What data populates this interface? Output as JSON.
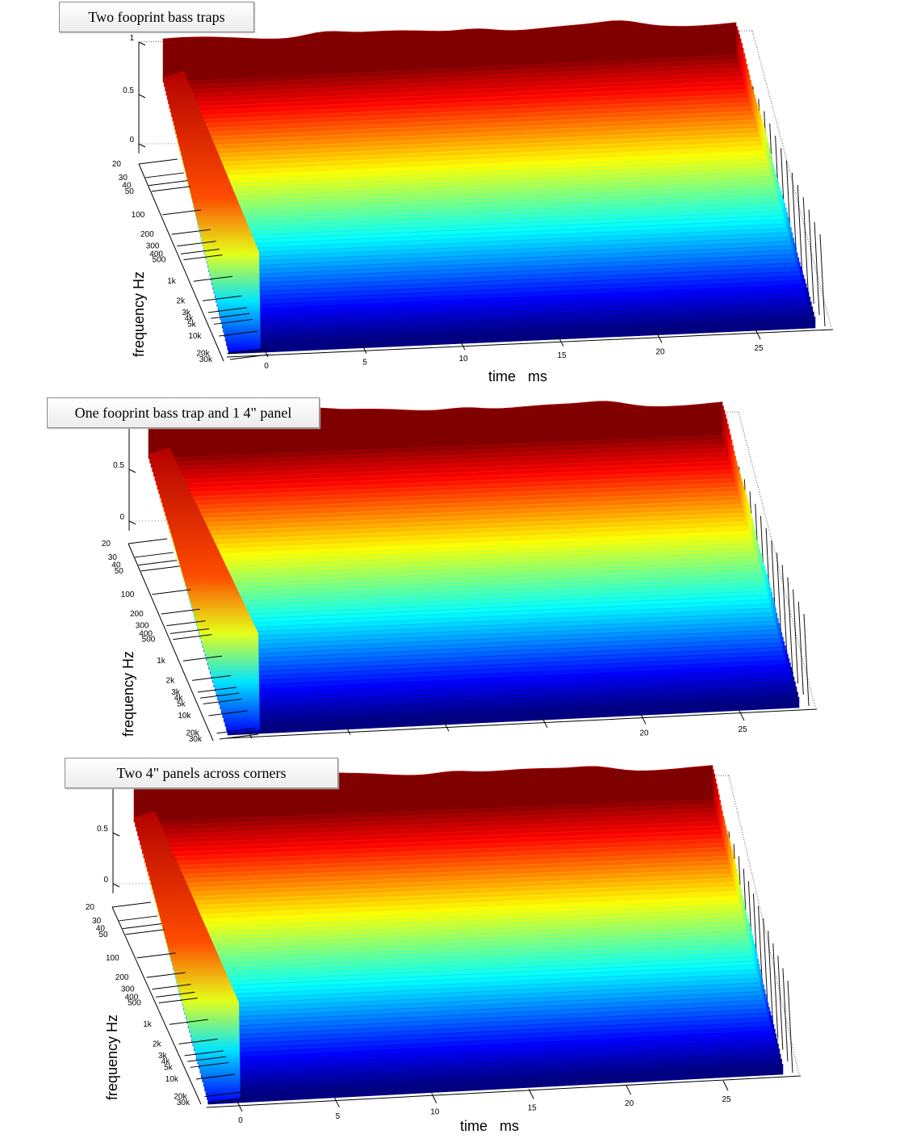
{
  "colors": {
    "colormap": "jet",
    "background": "#ffffff",
    "axis_line": "#000000",
    "box_dotted": "#555555"
  },
  "chart_data": [
    {
      "type": "waterfall",
      "title": "Two fooprint bass traps",
      "xlabel": "time   ms",
      "ylabel": "frequency   Hz",
      "z_ticks": [
        "0",
        "0.5",
        "1"
      ],
      "freq_ticks": [
        "20",
        "30",
        "40",
        "50",
        "100",
        "200",
        "300",
        "400",
        "500",
        "1k",
        "2k",
        "3k",
        "4k",
        "5k",
        "10k",
        "20k",
        "30k"
      ],
      "time_ticks": [
        "0",
        "5",
        "10",
        "15",
        "20",
        "25"
      ],
      "x_range": [
        0,
        30
      ],
      "z_range": [
        0,
        1
      ],
      "colormap": "jet",
      "grid": false
    },
    {
      "type": "waterfall",
      "title": "One fooprint bass trap and 1 4\" panel",
      "xlabel": "",
      "ylabel": "frequency   Hz",
      "z_ticks": [
        "0",
        "0.5"
      ],
      "freq_ticks": [
        "20",
        "30",
        "40",
        "50",
        "100",
        "200",
        "300",
        "400",
        "500",
        "1k",
        "2k",
        "3k",
        "4k",
        "5k",
        "10k",
        "20k",
        "30k"
      ],
      "time_ticks": [
        "",
        "",
        "",
        "",
        "20",
        "25"
      ],
      "x_range": [
        0,
        30
      ],
      "z_range": [
        0,
        1
      ],
      "colormap": "jet",
      "grid": false
    },
    {
      "type": "waterfall",
      "title": "Two 4\" panels across corners",
      "xlabel": "time   ms",
      "ylabel": "frequency   Hz",
      "z_ticks": [
        "0",
        "0.5"
      ],
      "freq_ticks": [
        "20",
        "30",
        "40",
        "50",
        "100",
        "200",
        "300",
        "400",
        "500",
        "1k",
        "2k",
        "3k",
        "4k",
        "5k",
        "10k",
        "20k",
        "30k"
      ],
      "time_ticks": [
        "0",
        "5",
        "10",
        "15",
        "20",
        "25"
      ],
      "x_range": [
        0,
        30
      ],
      "z_range": [
        0,
        1
      ],
      "colormap": "jet",
      "grid": false
    }
  ]
}
